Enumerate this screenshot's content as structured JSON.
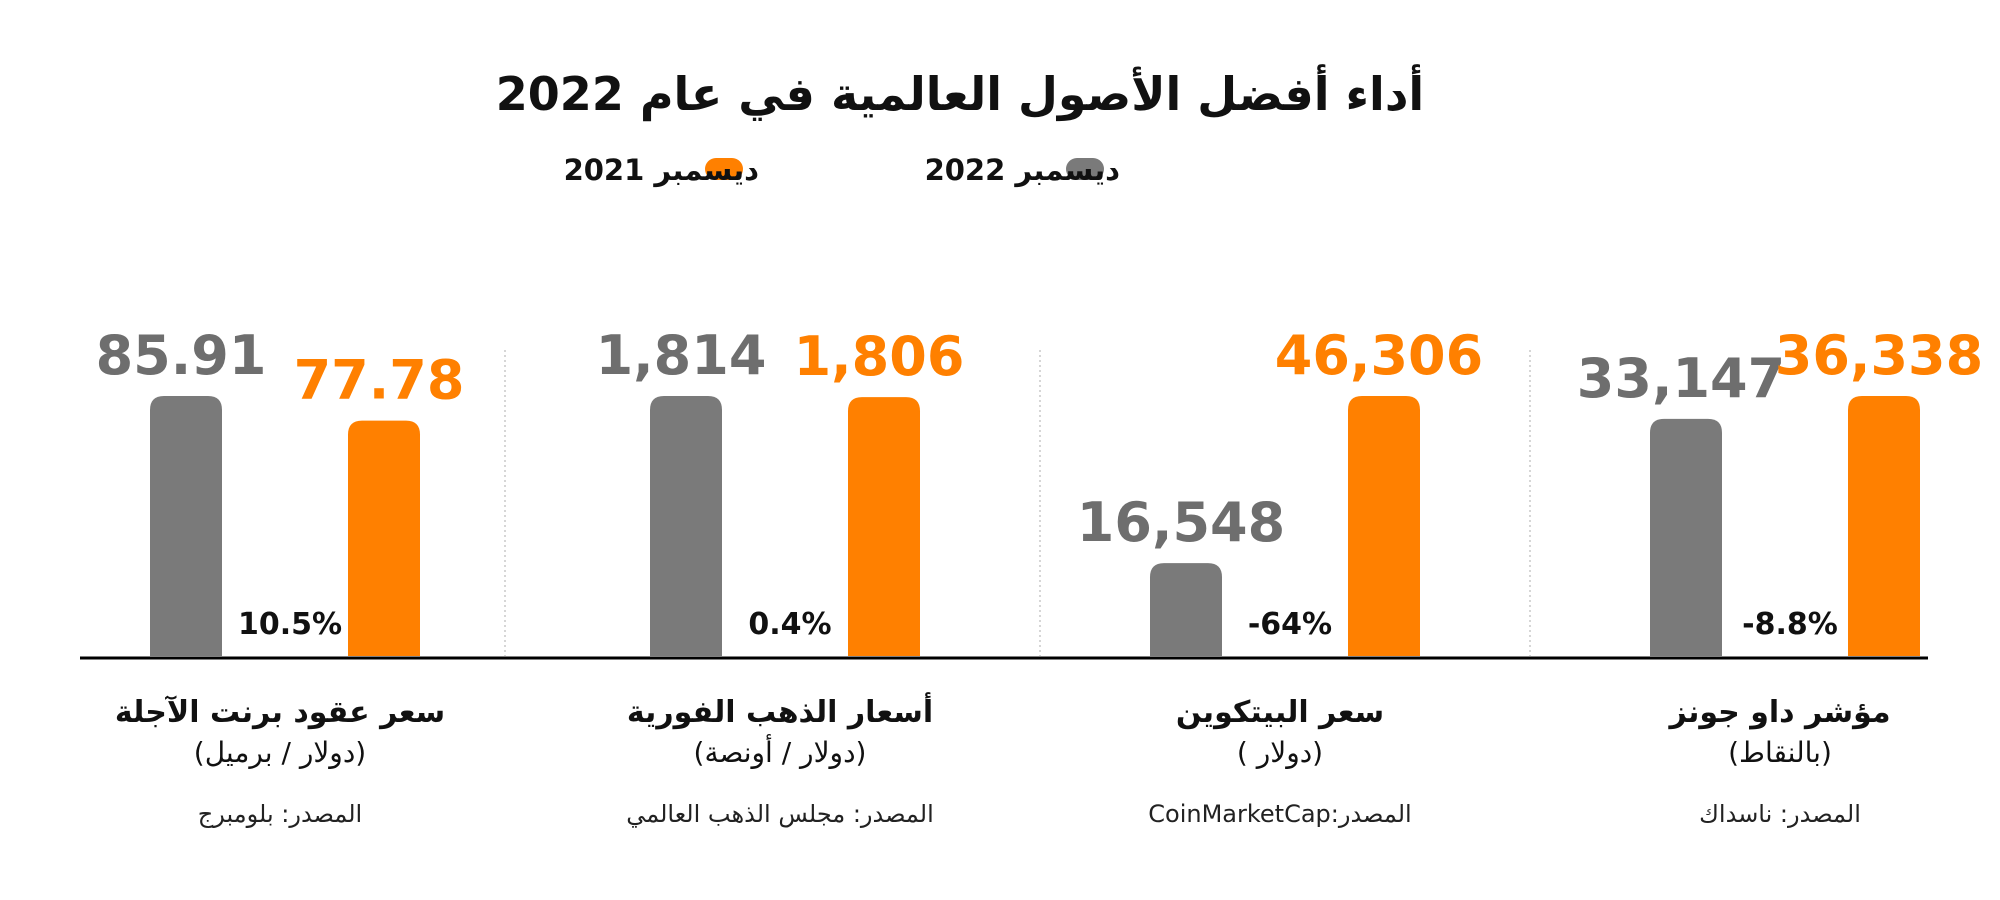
{
  "title": "أداء أفضل الأصول العالمية في عام 2022",
  "legend": [
    {
      "label": "ديسمبر 2022",
      "color": "#7a7a7a"
    },
    {
      "label": "ديسمبر 2021",
      "color": "#ff8000"
    }
  ],
  "colors": {
    "dec_2022": "#7a7a7a",
    "dec_2021": "#ff8000",
    "label_2022": "#6e6e6e",
    "label_2021": "#ff8000",
    "axis": "#000000",
    "divider": "#c8c8c8"
  },
  "chart_data": {
    "type": "bar",
    "categories": [
      "مؤشر داو جونز",
      "سعر البيتكوين",
      "أسعار الذهب الفورية",
      "سعر عقود برنت الآجلة"
    ],
    "series": [
      {
        "name": "ديسمبر 2022",
        "values": [
          33147,
          16548,
          1814,
          85.91
        ],
        "labels": [
          "33,147",
          "16,548",
          "1,814",
          "85.91"
        ]
      },
      {
        "name": "ديسمبر 2021",
        "values": [
          36338,
          46306,
          1806,
          77.78
        ],
        "labels": [
          "36,338",
          "46,306",
          "1,806",
          "77.78"
        ]
      }
    ],
    "change_labels": [
      "-8.8%",
      "-64%",
      "0.4%",
      "10.5%"
    ],
    "units": [
      "(بالنقاط)",
      "(دولار )",
      "(دولار / أونصة)",
      "(دولار / برميل)"
    ],
    "sources": [
      "المصدر: ناسداك",
      "المصدر:CoinMarketCap",
      "المصدر: مجلس الذهب العالمي",
      "المصدر: بلومبرج"
    ],
    "layout_order": "right-to-left"
  }
}
